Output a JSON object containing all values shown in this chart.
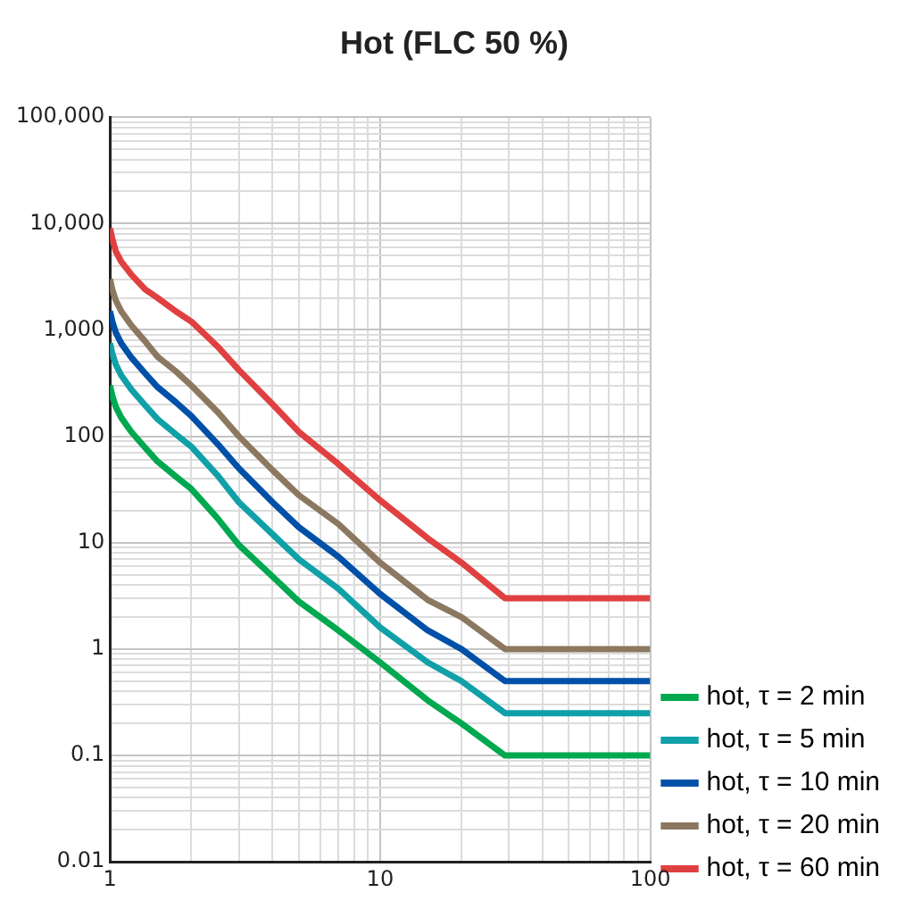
{
  "chart_data": {
    "type": "line",
    "title": "Hot (FLC 50 %)",
    "log": "xy",
    "grid": true,
    "legend": "bottom right",
    "marker": "none",
    "line_style": "solid",
    "x": [
      1,
      1.02,
      1.05,
      1.1,
      1.2,
      1.35,
      1.5,
      1.75,
      2,
      2.5,
      3,
      4,
      5,
      7,
      10,
      15,
      20,
      29,
      100
    ],
    "xlim": [
      1,
      100
    ],
    "xticks": [
      1,
      10,
      100
    ],
    "ylim": [
      0.01,
      100000
    ],
    "yticks": [
      0.01,
      0.1,
      1,
      10,
      100,
      {
        "value": 1000,
        "label": "1,000"
      },
      {
        "value": 10000,
        "label": "10,000"
      },
      {
        "value": 100000,
        "label": "100,000"
      }
    ],
    "series": [
      {
        "name": "hot, τ = 2 min",
        "color": "#00a850",
        "values": [
          300,
          240,
          190,
          150,
          110,
          78,
          58,
          42,
          32,
          17,
          9.5,
          4.8,
          2.8,
          1.5,
          0.75,
          0.33,
          0.2,
          0.1,
          0.1
        ]
      },
      {
        "name": "hot, τ = 5 min",
        "color": "#10a0a8",
        "values": [
          750,
          600,
          475,
          375,
          275,
          195,
          145,
          105,
          80,
          43,
          24,
          12,
          7,
          3.7,
          1.6,
          0.75,
          0.5,
          0.25,
          0.25
        ]
      },
      {
        "name": "hot, τ = 10 min",
        "color": "#0050a8",
        "values": [
          1500,
          1200,
          950,
          750,
          550,
          390,
          290,
          210,
          155,
          85,
          50,
          24,
          14,
          7.4,
          3.3,
          1.5,
          1,
          0.5,
          0.5
        ]
      },
      {
        "name": "hot, τ = 20 min",
        "color": "#8c7860",
        "values": [
          3000,
          2400,
          1900,
          1500,
          1100,
          780,
          560,
          410,
          300,
          170,
          100,
          48,
          28,
          15,
          6.5,
          2.9,
          2,
          1,
          1
        ]
      },
      {
        "name": "hot, τ = 60 min",
        "color": "#e04040",
        "values": [
          9000,
          7200,
          5500,
          4400,
          3300,
          2400,
          2000,
          1500,
          1200,
          700,
          420,
          200,
          110,
          55,
          25,
          11,
          6.5,
          3,
          3
        ]
      }
    ]
  }
}
